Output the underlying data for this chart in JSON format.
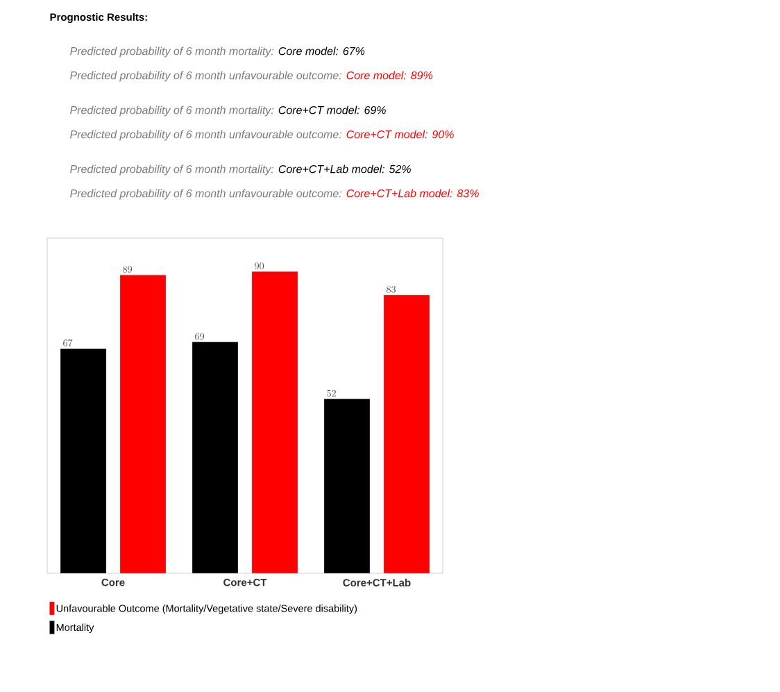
{
  "chart_data": {
    "type": "bar",
    "title": "Prognostic Results:",
    "annotations": [
      "Predicted probability of 6 month mortality:",
      "Core model: 67%",
      "Predicted probability of 6 month unfavourable outcome:",
      "Core model: 89%",
      "Predicted probability of 6 month mortality:",
      "Core+CT model: 69%",
      "Predicted probability of 6 month unfavourable outcome:",
      "Core+CT model: 90%",
      "Predicted probability of 6 month mortality:",
      "Core+CT+Lab model: 52%",
      "Predicted probability of 6 month unfavourable outcome:",
      "Core+CT+Lab model: 83%"
    ],
    "categories": [
      "Core",
      "Core+CT",
      "Core+CT+Lab"
    ],
    "series": [
      {
        "name": "Mortality",
        "color": "#000000",
        "values": [
          67,
          69,
          52
        ]
      },
      {
        "name": "Unfavourable Outcome (Mortality/Vegetative state/Severe disability)",
        "color": "#ff0000",
        "values": [
          89,
          90,
          83
        ]
      }
    ],
    "ylim": [
      0,
      100
    ],
    "tick_labels": "x",
    "data_labels": true,
    "legend": "bottom",
    "grid": false
  }
}
